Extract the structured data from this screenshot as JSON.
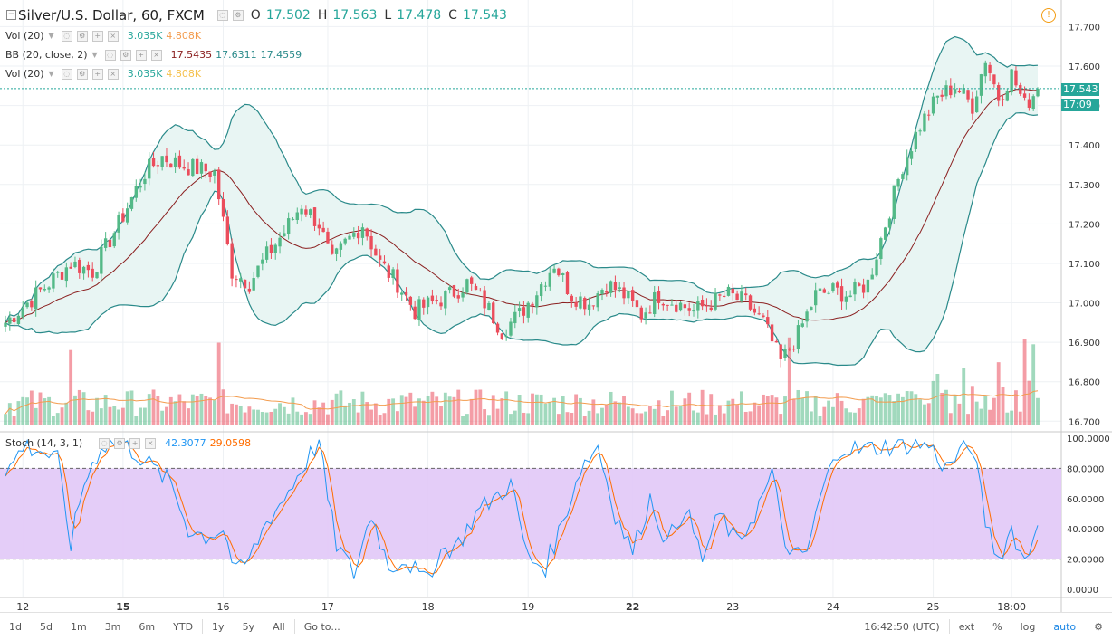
{
  "header": {
    "symbol": "Silver/U.S. Dollar, 60, FXCM",
    "open_label": "O",
    "open": "17.502",
    "high_label": "H",
    "high": "17.563",
    "low_label": "L",
    "low": "17.478",
    "close_label": "C",
    "close": "17.543"
  },
  "legends": {
    "vol1": {
      "title": "Vol (20)",
      "v1": "3.035K",
      "v2": "4.808K"
    },
    "bb": {
      "title": "BB (20, close, 2)",
      "v1": "17.5435",
      "v2": "17.6311",
      "v3": "17.4559"
    },
    "vol2": {
      "title": "Vol (20)",
      "v1": "3.035K",
      "v2": "4.808K"
    },
    "stoch": {
      "title": "Stoch (14, 3, 1)",
      "v1": "42.3077",
      "v2": "29.0598"
    }
  },
  "price_tags": {
    "last": "17.543",
    "countdown": "17:09"
  },
  "bottom_bar": {
    "ranges": [
      "1d",
      "5d",
      "1m",
      "3m",
      "6m",
      "YTD",
      "1y",
      "5y",
      "All"
    ],
    "goto": "Go to...",
    "time": "16:42:50 (UTC)",
    "ext": "ext",
    "pct": "%",
    "log": "log",
    "auto": "auto"
  },
  "colors": {
    "up": "#53b987",
    "down": "#eb4d5c",
    "bb": "#2a8a8a",
    "bb_fill": "#e8f5f3",
    "basis": "#8b2020",
    "vol_ma": "#f39c4e",
    "stoch_k": "#2196f3",
    "stoch_d": "#ff6d00",
    "stoch_band": "#e1c8f7"
  },
  "chart_data": [
    {
      "type": "candlestick",
      "title": "Silver/U.S. Dollar, 60, FXCM",
      "ylim": [
        16.68,
        17.74
      ],
      "yticks": [
        "17.700",
        "17.600",
        "17.500",
        "17.400",
        "17.300",
        "17.200",
        "17.100",
        "17.000",
        "16.900",
        "16.800",
        "16.700"
      ],
      "xticks": [
        "12",
        "15",
        "16",
        "17",
        "18",
        "19",
        "22",
        "23",
        "24",
        "25",
        "18:00"
      ],
      "close_anchors": [
        [
          0,
          16.95
        ],
        [
          5,
          17.0
        ],
        [
          10,
          17.05
        ],
        [
          15,
          17.1
        ],
        [
          20,
          17.08
        ],
        [
          26,
          17.2
        ],
        [
          32,
          17.33
        ],
        [
          36,
          17.37
        ],
        [
          40,
          17.35
        ],
        [
          44,
          17.34
        ],
        [
          48,
          17.33
        ],
        [
          52,
          17.08
        ],
        [
          56,
          17.05
        ],
        [
          60,
          17.12
        ],
        [
          64,
          17.18
        ],
        [
          68,
          17.25
        ],
        [
          72,
          17.2
        ],
        [
          75,
          17.1
        ],
        [
          78,
          17.15
        ],
        [
          82,
          17.2
        ],
        [
          86,
          17.1
        ],
        [
          90,
          17.05
        ],
        [
          94,
          16.98
        ],
        [
          98,
          17.0
        ],
        [
          102,
          17.02
        ],
        [
          106,
          17.05
        ],
        [
          110,
          17.0
        ],
        [
          114,
          16.93
        ],
        [
          118,
          16.97
        ],
        [
          122,
          17.03
        ],
        [
          126,
          17.1
        ],
        [
          130,
          17.02
        ],
        [
          134,
          17.0
        ],
        [
          138,
          17.05
        ],
        [
          142,
          17.02
        ],
        [
          146,
          16.97
        ],
        [
          150,
          17.02
        ],
        [
          154,
          17.0
        ],
        [
          158,
          16.98
        ],
        [
          162,
          17.0
        ],
        [
          166,
          17.02
        ],
        [
          170,
          17.0
        ],
        [
          174,
          16.95
        ],
        [
          178,
          16.85
        ],
        [
          182,
          16.92
        ],
        [
          186,
          17.02
        ],
        [
          190,
          17.03
        ],
        [
          194,
          17.02
        ],
        [
          198,
          17.05
        ],
        [
          202,
          17.2
        ],
        [
          206,
          17.35
        ],
        [
          210,
          17.45
        ],
        [
          214,
          17.52
        ],
        [
          218,
          17.55
        ],
        [
          222,
          17.5
        ],
        [
          225,
          17.62
        ],
        [
          228,
          17.52
        ],
        [
          231,
          17.58
        ],
        [
          234,
          17.5
        ],
        [
          237,
          17.543
        ]
      ],
      "volume_ma_level": "about 4.8K",
      "series": [
        {
          "name": "Vol (20)"
        },
        {
          "name": "BB (20, close, 2)"
        }
      ]
    },
    {
      "type": "line",
      "title": "Stoch (14, 3, 1)",
      "ylim": [
        0,
        100
      ],
      "yticks": [
        "100.0000",
        "80.0000",
        "60.0000",
        "40.0000",
        "20.0000",
        "0.0000"
      ],
      "band": [
        20,
        80
      ],
      "k_anchors": [
        [
          0,
          75
        ],
        [
          4,
          95
        ],
        [
          8,
          92
        ],
        [
          12,
          85
        ],
        [
          15,
          30
        ],
        [
          18,
          70
        ],
        [
          22,
          95
        ],
        [
          26,
          98
        ],
        [
          30,
          90
        ],
        [
          34,
          80
        ],
        [
          38,
          70
        ],
        [
          42,
          40
        ],
        [
          46,
          35
        ],
        [
          50,
          40
        ],
        [
          53,
          10
        ],
        [
          56,
          20
        ],
        [
          60,
          45
        ],
        [
          64,
          60
        ],
        [
          68,
          80
        ],
        [
          72,
          98
        ],
        [
          74,
          60
        ],
        [
          76,
          30
        ],
        [
          80,
          10
        ],
        [
          84,
          50
        ],
        [
          88,
          15
        ],
        [
          92,
          20
        ],
        [
          96,
          5
        ],
        [
          100,
          25
        ],
        [
          104,
          30
        ],
        [
          108,
          50
        ],
        [
          112,
          60
        ],
        [
          116,
          70
        ],
        [
          120,
          20
        ],
        [
          124,
          15
        ],
        [
          128,
          45
        ],
        [
          132,
          80
        ],
        [
          136,
          95
        ],
        [
          140,
          50
        ],
        [
          144,
          25
        ],
        [
          148,
          60
        ],
        [
          152,
          30
        ],
        [
          156,
          55
        ],
        [
          160,
          20
        ],
        [
          164,
          50
        ],
        [
          168,
          30
        ],
        [
          172,
          50
        ],
        [
          176,
          75
        ],
        [
          180,
          20
        ],
        [
          184,
          25
        ],
        [
          188,
          70
        ],
        [
          192,
          95
        ],
        [
          196,
          92
        ],
        [
          200,
          94
        ],
        [
          204,
          95
        ],
        [
          208,
          96
        ],
        [
          212,
          95
        ],
        [
          216,
          80
        ],
        [
          219,
          90
        ],
        [
          222,
          95
        ],
        [
          225,
          45
        ],
        [
          228,
          20
        ],
        [
          231,
          40
        ],
        [
          234,
          18
        ],
        [
          237,
          42.3
        ]
      ],
      "series": [
        {
          "name": "%K"
        },
        {
          "name": "%D"
        }
      ]
    }
  ]
}
